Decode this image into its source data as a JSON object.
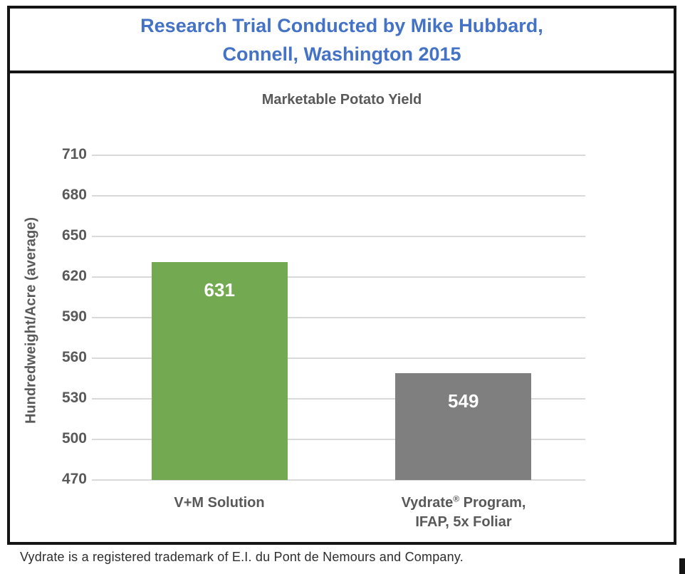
{
  "header": {
    "line1": "Research Trial Conducted by Mike Hubbard,",
    "line2": "Connell, Washington 2015",
    "text_color": "#4472C4"
  },
  "chart_data": {
    "type": "bar",
    "title": "Marketable Potato Yield",
    "categories": [
      "V+M Solution",
      "Vydrate® Program, IFAP, 5x Foliar"
    ],
    "values": [
      631,
      549
    ],
    "data_labels": [
      "631",
      "549"
    ],
    "data_label_position": "inside-end",
    "data_label_color": "#FFFFFF",
    "bar_colors": [
      "#73A950",
      "#7F7F7F"
    ],
    "ylabel": "Hundredweight/Acre  (average)",
    "xlabel": "",
    "ylim": [
      470,
      710
    ],
    "ytick_step": 30,
    "yticks": [
      470,
      500,
      530,
      560,
      590,
      620,
      650,
      680,
      710
    ],
    "grid": true,
    "gridline_color": "#D9D9D9",
    "axis_text_color": "#595959",
    "legend": "none"
  },
  "categories_display": {
    "cat1": {
      "line1": "V+M Solution"
    },
    "cat2": {
      "line1_pre": "Vydrate",
      "line1_sup": "®",
      "line1_post": " Program,",
      "line2": "IFAP, 5x Foliar"
    }
  },
  "footer": {
    "text": "Vydrate is a registered trademark of E.I. du Pont de Nemours and Company."
  }
}
